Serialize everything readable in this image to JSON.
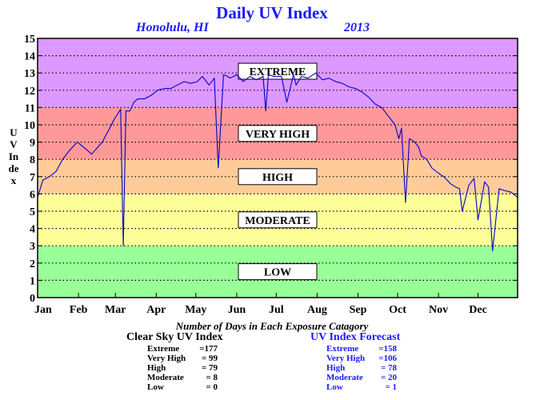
{
  "chart_data": {
    "type": "line",
    "title": "Daily UV Index",
    "subtitle_left": "Honolulu, HI",
    "subtitle_right": "2013",
    "ylabel": "UV Index",
    "xlabel": "",
    "ylim": [
      0,
      15
    ],
    "yticks": [
      0,
      1,
      2,
      3,
      4,
      5,
      6,
      7,
      8,
      9,
      10,
      11,
      12,
      13,
      14,
      15
    ],
    "grid": true,
    "x_tick_labels": [
      "Jan",
      "Feb",
      "Mar",
      "Apr",
      "May",
      "Jun",
      "Jul",
      "Aug",
      "Sep",
      "Oct",
      "Nov",
      "Dec"
    ],
    "bands": [
      {
        "label": "LOW",
        "from": 0,
        "to": 3,
        "color": "#99ff99"
      },
      {
        "label": "MODERATE",
        "from": 3,
        "to": 6,
        "color": "#ffff99"
      },
      {
        "label": "HIGH",
        "from": 6,
        "to": 8,
        "color": "#ffcc99"
      },
      {
        "label": "VERY HIGH",
        "from": 8,
        "to": 11,
        "color": "#ff9999"
      },
      {
        "label": "EXTREME",
        "from": 11,
        "to": 15,
        "color": "#dd99ff"
      }
    ],
    "series": [
      {
        "color": "#0000cc",
        "x": [
          1,
          5,
          10,
          15,
          20,
          25,
          31,
          36,
          42,
          50,
          55,
          59,
          64,
          66,
          68,
          71,
          74,
          77,
          82,
          87,
          92,
          97,
          102,
          107,
          112,
          117,
          122,
          126,
          131,
          135,
          138,
          142,
          145,
          147,
          152,
          157,
          162,
          167,
          172,
          174,
          176,
          180,
          186,
          190,
          195,
          197,
          201,
          206,
          212,
          217,
          222,
          227,
          232,
          237,
          242,
          247,
          252,
          257,
          262,
          267,
          272,
          275,
          277,
          280,
          283,
          287,
          290,
          292,
          296,
          300,
          305,
          309,
          314,
          318,
          321,
          323,
          328,
          332,
          335,
          340,
          343,
          346,
          351,
          355,
          360,
          365
        ],
        "values": [
          5.8,
          6.8,
          7.0,
          7.3,
          8.0,
          8.5,
          9.0,
          8.7,
          8.3,
          9.0,
          9.7,
          10.3,
          10.9,
          3.0,
          10.8,
          10.8,
          11.3,
          11.5,
          11.5,
          11.7,
          12.0,
          12.1,
          12.1,
          12.3,
          12.5,
          12.4,
          12.5,
          12.8,
          12.3,
          12.7,
          7.5,
          12.9,
          12.8,
          12.7,
          12.9,
          12.5,
          12.8,
          12.6,
          12.8,
          10.8,
          12.9,
          12.8,
          12.8,
          11.3,
          12.9,
          12.3,
          12.8,
          12.7,
          13.0,
          12.6,
          12.7,
          12.5,
          12.4,
          12.2,
          12.1,
          11.9,
          11.6,
          11.2,
          11.0,
          10.5,
          10.0,
          9.2,
          9.8,
          5.5,
          9.2,
          9.0,
          8.7,
          8.2,
          8.0,
          7.5,
          7.2,
          7.0,
          6.6,
          6.4,
          6.3,
          5.0,
          6.5,
          6.9,
          4.5,
          6.7,
          6.4,
          2.7,
          6.3,
          6.2,
          6.1,
          5.8
        ]
      }
    ],
    "stats": {
      "title": "Number of Days in Each Exposure Catagory",
      "clear_sky": {
        "heading": "Clear Sky UV Index",
        "rows": [
          {
            "label": "Extreme",
            "value": "=177"
          },
          {
            "label": "Very High",
            "value": "= 99"
          },
          {
            "label": "High",
            "value": "= 79"
          },
          {
            "label": "Moderate",
            "value": "= 8"
          },
          {
            "label": "Low",
            "value": "= 0"
          }
        ]
      },
      "forecast": {
        "heading": "UV Index Forecast",
        "rows": [
          {
            "label": "Extreme",
            "value": "=158"
          },
          {
            "label": "Very High",
            "value": "=106"
          },
          {
            "label": "High",
            "value": "= 78"
          },
          {
            "label": "Moderate",
            "value": "= 20"
          },
          {
            "label": "Low",
            "value": "= 1"
          }
        ]
      }
    }
  }
}
